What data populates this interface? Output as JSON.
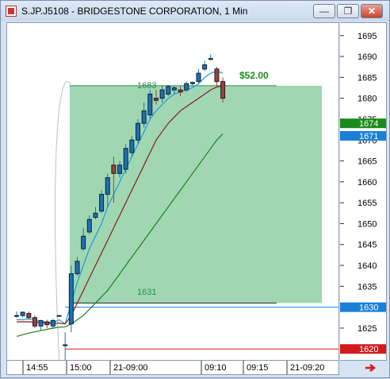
{
  "window": {
    "title": "S.JP.J5108 - BRIDGESTONE CORPORATION, 1 Min",
    "minimize_label": "—",
    "maximize_label": "❐",
    "close_label": "✕"
  },
  "annotations": {
    "profit_label": "$52.00",
    "entry_price_label": "1683",
    "stop_price_label": "1631"
  },
  "price_axis": {
    "ticks": [
      1695,
      1690,
      1685,
      1680,
      1675,
      1670,
      1665,
      1660,
      1655,
      1650,
      1645,
      1640,
      1635,
      1630,
      1625,
      1620
    ],
    "markers": [
      {
        "label": "1674",
        "value": 1674,
        "color": "#1a8a1a"
      },
      {
        "label": "1671",
        "value": 1671,
        "color": "#1a7fd6"
      },
      {
        "label": "1630",
        "value": 1630,
        "color": "#1a7fd6"
      },
      {
        "label": "1620",
        "value": 1620,
        "color": "#d21b1b"
      }
    ]
  },
  "time_axis": {
    "labels": [
      "14:55",
      "15:00",
      "21-09:00",
      "09:10",
      "09:15",
      "21-09:20"
    ]
  },
  "colors": {
    "bull": "#1f6fb2",
    "bear": "#a0402a",
    "zone": "#8fd0a5",
    "ema_fast": "#1e9bd7",
    "ema_mid": "#8b1a1a",
    "ema_slow": "#1f7f1f"
  },
  "chart_data": {
    "type": "candlestick",
    "ylim": [
      1617,
      1698
    ],
    "yticks": [
      1620,
      1625,
      1630,
      1635,
      1640,
      1645,
      1650,
      1655,
      1660,
      1665,
      1670,
      1675,
      1680,
      1685,
      1690,
      1695
    ],
    "candles": [
      {
        "o": 1628,
        "h": 1629,
        "l": 1627.5,
        "c": 1628
      },
      {
        "o": 1628,
        "h": 1629,
        "l": 1627.6,
        "c": 1628.8
      },
      {
        "o": 1628.5,
        "h": 1629,
        "l": 1627,
        "c": 1627.5
      },
      {
        "o": 1627.5,
        "h": 1628,
        "l": 1625,
        "c": 1625.5
      },
      {
        "o": 1625.5,
        "h": 1627,
        "l": 1624.5,
        "c": 1626.8
      },
      {
        "o": 1626.5,
        "h": 1627,
        "l": 1625,
        "c": 1625.8
      },
      {
        "o": 1625.5,
        "h": 1627.2,
        "l": 1624.8,
        "c": 1626.8
      },
      {
        "o": 1628,
        "h": 1628.1,
        "l": 1627.9,
        "c": 1628
      },
      {
        "o": 1621,
        "h": 1624,
        "l": 1612,
        "c": 1621
      },
      {
        "o": 1626,
        "h": 1640,
        "l": 1624,
        "c": 1638
      },
      {
        "o": 1638,
        "h": 1642,
        "l": 1637.5,
        "c": 1641
      },
      {
        "o": 1644,
        "h": 1649,
        "l": 1643.5,
        "c": 1647
      },
      {
        "o": 1648,
        "h": 1652,
        "l": 1647.5,
        "c": 1651
      },
      {
        "o": 1651.5,
        "h": 1654,
        "l": 1651,
        "c": 1652.5
      },
      {
        "o": 1653,
        "h": 1658,
        "l": 1652.5,
        "c": 1657
      },
      {
        "o": 1657,
        "h": 1662,
        "l": 1654,
        "c": 1661
      },
      {
        "o": 1664,
        "h": 1666,
        "l": 1655,
        "c": 1662
      },
      {
        "o": 1662,
        "h": 1665,
        "l": 1661,
        "c": 1664
      },
      {
        "o": 1663,
        "h": 1669,
        "l": 1662,
        "c": 1668
      },
      {
        "o": 1667,
        "h": 1671,
        "l": 1666,
        "c": 1670
      },
      {
        "o": 1670,
        "h": 1675,
        "l": 1669,
        "c": 1674
      },
      {
        "o": 1674,
        "h": 1679,
        "l": 1673,
        "c": 1677
      },
      {
        "o": 1676,
        "h": 1682,
        "l": 1675,
        "c": 1681
      },
      {
        "o": 1680,
        "h": 1682,
        "l": 1678.5,
        "c": 1679.5
      },
      {
        "o": 1680,
        "h": 1683,
        "l": 1679,
        "c": 1682
      },
      {
        "o": 1681,
        "h": 1683.2,
        "l": 1680.5,
        "c": 1682.8
      },
      {
        "o": 1682,
        "h": 1683,
        "l": 1681,
        "c": 1682.5
      },
      {
        "o": 1682,
        "h": 1683,
        "l": 1680.5,
        "c": 1681.5
      },
      {
        "o": 1682,
        "h": 1684,
        "l": 1681.5,
        "c": 1683.5
      },
      {
        "o": 1683.5,
        "h": 1684,
        "l": 1683,
        "c": 1683.8
      },
      {
        "o": 1684,
        "h": 1687,
        "l": 1683.5,
        "c": 1686
      },
      {
        "o": 1687,
        "h": 1689,
        "l": 1686.5,
        "c": 1688
      },
      {
        "o": 1689.5,
        "h": 1690.5,
        "l": 1689,
        "c": 1689.5
      },
      {
        "o": 1687,
        "h": 1687.5,
        "l": 1683,
        "c": 1684
      },
      {
        "o": 1684,
        "h": 1685,
        "l": 1679,
        "c": 1680
      }
    ],
    "series": [
      {
        "name": "",
        "values": [
          1627,
          1627,
          1627.2,
          1627,
          1626.5,
          1626.4,
          1626.3,
          1627,
          1626,
          1631,
          1636,
          1640,
          1644,
          1647,
          1650,
          1654,
          1657,
          1660,
          1663,
          1666,
          1669,
          1672,
          1675,
          1677,
          1678.5,
          1680,
          1681,
          1681.5,
          1682,
          1682.5,
          1683.5,
          1685,
          1686,
          1686.5,
          1686
        ]
      },
      {
        "name": "",
        "values": [
          1626.5,
          1626.5,
          1626.5,
          1626.4,
          1626.3,
          1626.2,
          1626.1,
          1626.2,
          1626,
          1628,
          1631,
          1634,
          1637,
          1640,
          1643,
          1646,
          1649,
          1652,
          1655,
          1658,
          1661,
          1664,
          1667,
          1670,
          1672,
          1674,
          1675.5,
          1677,
          1678,
          1679,
          1680,
          1681,
          1682,
          1682.7,
          1683
        ]
      },
      {
        "name": "",
        "values": [
          1623,
          1623.4,
          1623.8,
          1624.1,
          1624.4,
          1624.7,
          1625,
          1625.2,
          1625.3,
          1626,
          1627,
          1628,
          1629.5,
          1631,
          1632.5,
          1634,
          1636,
          1638,
          1640,
          1642,
          1644,
          1646,
          1648,
          1650,
          1652,
          1654,
          1656,
          1658,
          1660,
          1662,
          1664,
          1666,
          1668,
          1670,
          1671.5
        ]
      }
    ],
    "trade": {
      "entry": 1683,
      "stop": 1631,
      "target_line": 1630,
      "stop_line": 1620,
      "profit": "$52.00"
    }
  }
}
